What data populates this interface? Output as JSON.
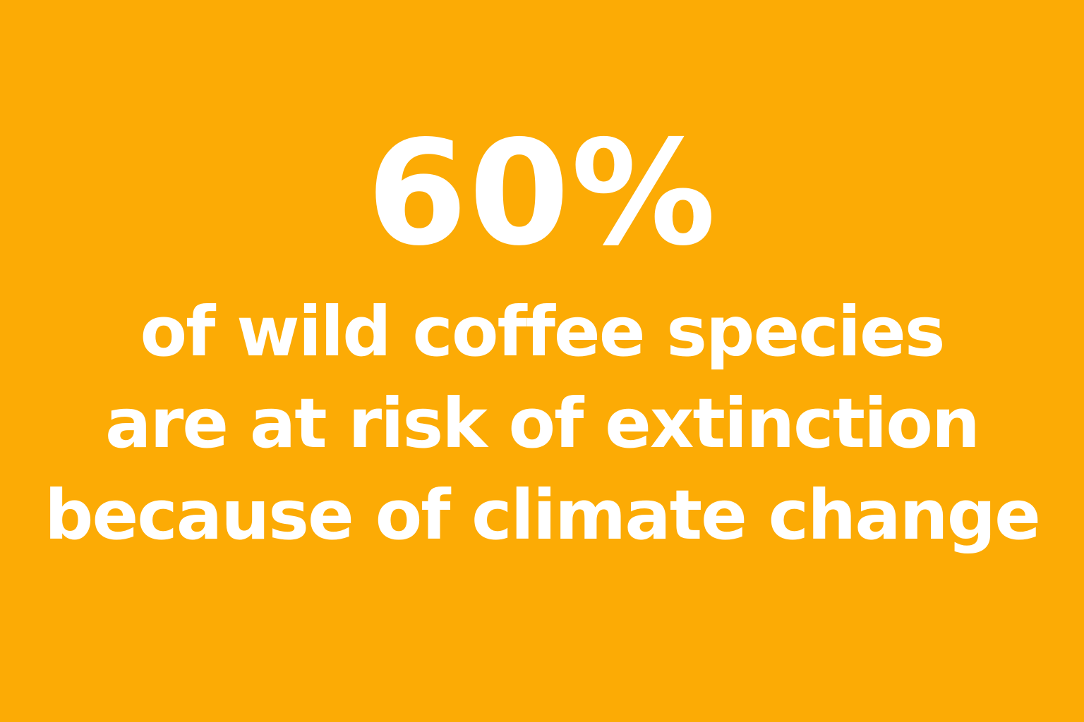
{
  "card": {
    "background_color": "#FCAB05",
    "text_color": "#FFFFFF",
    "stat_value": "60%",
    "line1": "of wild coffee species",
    "line2": "are at risk of extinction",
    "line3": "because of climate change"
  }
}
